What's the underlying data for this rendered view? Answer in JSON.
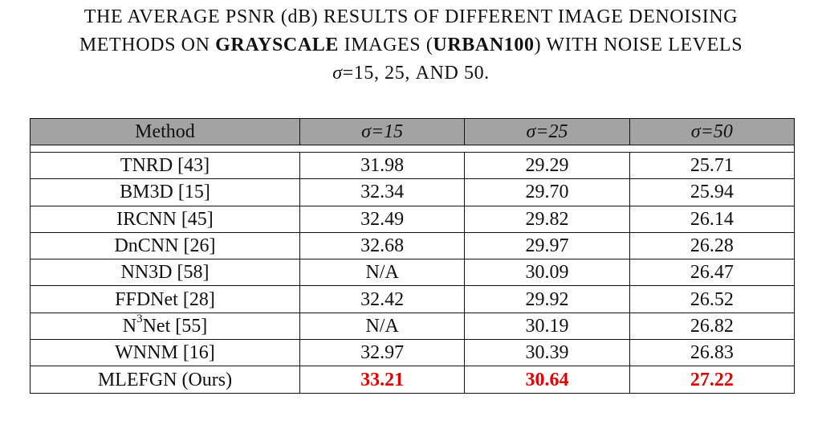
{
  "caption": {
    "line1": "THE AVERAGE PSNR (dB) RESULTS OF DIFFERENT IMAGE DENOISING",
    "line2_a": "METHODS ON",
    "line2_bold": "GRAYSCALE",
    "line2_b": "IMAGES (",
    "line2_dataset": "URBAN100",
    "line2_c": ") WITH NOISE LEVELS",
    "line3_sigma": "σ",
    "line3_rest": "=15, 25, AND 50."
  },
  "table": {
    "headers": [
      "Method",
      "σ=15",
      "σ=25",
      "σ=50"
    ],
    "rows": [
      {
        "method": "TNRD [43]",
        "v15": "31.98",
        "v25": "29.29",
        "v50": "25.71"
      },
      {
        "method": "BM3D [15]",
        "v15": "32.34",
        "v25": "29.70",
        "v50": "25.94"
      },
      {
        "method": "IRCNN [45]",
        "v15": "32.49",
        "v25": "29.82",
        "v50": "26.14"
      },
      {
        "method": "DnCNN [26]",
        "v15": "32.68",
        "v25": "29.97",
        "v50": "26.28"
      },
      {
        "method": "NN3D [58]",
        "v15": "N/A",
        "v25": "30.09",
        "v50": "26.47"
      },
      {
        "method": "FFDNet [28]",
        "v15": "32.42",
        "v25": "29.92",
        "v50": "26.52"
      },
      {
        "method_base": "N",
        "method_sup": "3",
        "method_rest": "Net [55]",
        "v15": "N/A",
        "v25": "30.19",
        "v50": "26.82"
      },
      {
        "method": "WNNM [16]",
        "v15": "32.97",
        "v25": "30.39",
        "v50": "26.83"
      },
      {
        "method": "MLEFGN (Ours)",
        "v15": "33.21",
        "v25": "30.64",
        "v50": "27.22"
      }
    ]
  },
  "colors": {
    "header_bg": "#a3a3a3",
    "best": "#e00000"
  }
}
